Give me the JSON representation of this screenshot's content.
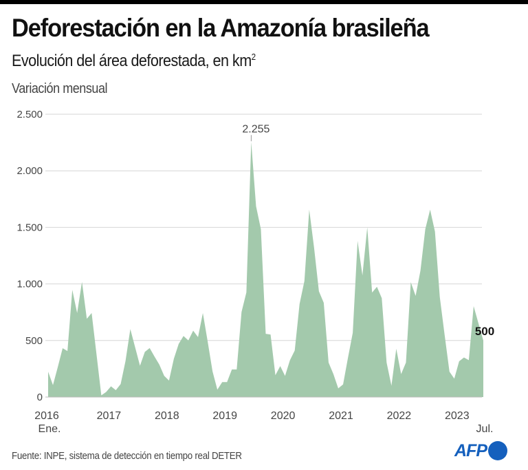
{
  "header": {
    "title": "Deforestación en la Amazonía brasileña",
    "subtitle": "Evolución del área deforestada, en km",
    "subtitle_sup": "2",
    "section_label": "Variación mensual"
  },
  "footer": {
    "source": "Fuente: INPE, sistema de detección en tiempo real DETER",
    "logo_text": "AFP",
    "logo_color": "#1560bd"
  },
  "chart_data": {
    "type": "area",
    "title": "Deforestación en la Amazonía brasileña",
    "subtitle": "Evolución del área deforestada, en km²",
    "ylabel": "Variación mensual",
    "xlabel": "",
    "ylim": [
      0,
      2500
    ],
    "yticks": [
      0,
      500,
      1000,
      1500,
      2000,
      2500
    ],
    "ytick_labels": [
      "0",
      "500",
      "1.000",
      "1.500",
      "2.000",
      "2.500"
    ],
    "grid": true,
    "fill_color": "#a3c9ac",
    "x_start": "2016-01",
    "x_end": "2023-07",
    "xtick_labels": [
      {
        "label": "2016",
        "sub": "Ene.",
        "month_index": 0
      },
      {
        "label": "2017",
        "sub": "",
        "month_index": 12
      },
      {
        "label": "2018",
        "sub": "",
        "month_index": 24
      },
      {
        "label": "2019",
        "sub": "",
        "month_index": 36
      },
      {
        "label": "2020",
        "sub": "",
        "month_index": 48
      },
      {
        "label": "2021",
        "sub": "",
        "month_index": 60
      },
      {
        "label": "2022",
        "sub": "",
        "month_index": 72
      },
      {
        "label": "2023",
        "sub": "Jul.",
        "month_index": 84
      }
    ],
    "annotations": [
      {
        "label": "2.255",
        "month_index": 42,
        "value": 2255,
        "bold": false
      },
      {
        "label": "500",
        "month_index": 90,
        "value": 500,
        "bold": true
      }
    ],
    "series": [
      {
        "name": "Área deforestada (km²)",
        "values": [
          224,
          106,
          265,
          432,
          407,
          947,
          743,
          1018,
          692,
          743,
          380,
          15,
          45,
          95,
          61,
          115,
          318,
          601,
          439,
          277,
          399,
          433,
          358,
          287,
          188,
          146,
          338,
          470,
          540,
          500,
          587,
          530,
          743,
          490,
          227,
          65,
          132,
          132,
          244,
          244,
          752,
          925,
          2255,
          1687,
          1484,
          559,
          553,
          193,
          274,
          187,
          325,
          411,
          823,
          1026,
          1657,
          1321,
          935,
          833,
          305,
          203,
          77,
          112,
          345,
          568,
          1380,
          1075,
          1500,
          924,
          975,
          874,
          305,
          100,
          427,
          203,
          305,
          1016,
          894,
          1118,
          1484,
          1657,
          1463,
          884,
          549,
          224,
          163,
          316,
          350,
          326,
          804,
          651,
          500
        ]
      }
    ]
  }
}
